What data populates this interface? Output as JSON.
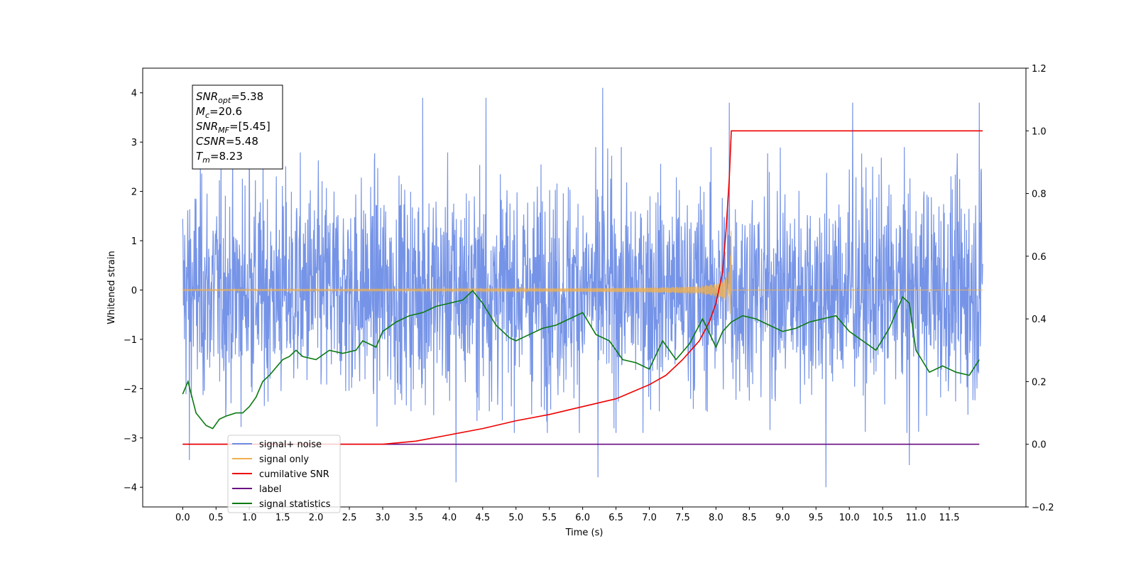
{
  "chart_data": {
    "type": "line",
    "xlabel": "Time (s)",
    "ylabel": "Whitened strain",
    "xlim": [
      -0.6,
      12.65
    ],
    "ylim": [
      -4.4,
      4.5
    ],
    "y2lim": [
      -0.2,
      1.2
    ],
    "x_ticks": [
      0.0,
      0.5,
      1.0,
      1.5,
      2.0,
      2.5,
      3.0,
      3.5,
      4.0,
      4.5,
      5.0,
      5.5,
      6.0,
      6.5,
      7.0,
      7.5,
      8.0,
      8.5,
      9.0,
      9.5,
      10.0,
      10.5,
      11.0,
      11.5
    ],
    "x_tick_labels": [
      "0.0",
      "0.5",
      "1.0",
      "1.5",
      "2.0",
      "2.5",
      "3.0",
      "3.5",
      "4.0",
      "4.5",
      "5.0",
      "5.5",
      "6.0",
      "6.5",
      "7.0",
      "7.5",
      "8.0",
      "8.5",
      "9.0",
      "9.5",
      "10.0",
      "10.5",
      "11.0",
      "11.5"
    ],
    "y_ticks": [
      -4,
      -3,
      -2,
      -1,
      0,
      1,
      2,
      3,
      4
    ],
    "y_tick_labels": [
      "−4",
      "−3",
      "−2",
      "−1",
      "0",
      "1",
      "2",
      "3",
      "4"
    ],
    "y2_ticks": [
      -0.2,
      0.0,
      0.2,
      0.4,
      0.6,
      0.8,
      1.0,
      1.2
    ],
    "y2_tick_labels": [
      "−0.2",
      "0.0",
      "0.2",
      "0.4",
      "0.6",
      "0.8",
      "1.0",
      "1.2"
    ],
    "grid": false,
    "legend_position": "lower-left",
    "merger_time": 8.23,
    "series": [
      {
        "name": "signal+ noise",
        "axis": "left",
        "color": "#6f8ee6",
        "kind": "noise",
        "x_range": [
          0.0,
          12.0
        ],
        "typical_range": [
          -2.5,
          2.5
        ],
        "peaks": [
          [
            1.0,
            3.5
          ],
          [
            3.6,
            3.9
          ],
          [
            4.55,
            3.9
          ],
          [
            6.3,
            4.1
          ],
          [
            8.2,
            3.8
          ],
          [
            10.05,
            3.8
          ],
          [
            11.95,
            3.8
          ]
        ],
        "troughs": [
          [
            0.1,
            -3.45
          ],
          [
            4.1,
            -3.9
          ],
          [
            6.23,
            -3.8
          ],
          [
            9.65,
            -4.0
          ],
          [
            10.9,
            -3.55
          ]
        ]
      },
      {
        "name": "signal only",
        "axis": "left",
        "color": "#f0b050",
        "kind": "chirp",
        "x_range": [
          0.0,
          12.0
        ],
        "peak_amplitude": 1.2,
        "end_time": 8.23
      },
      {
        "name": "cumilative SNR",
        "axis": "right",
        "color": "#ee0000",
        "x": [
          0.0,
          3.0,
          3.5,
          4.0,
          4.5,
          5.0,
          5.5,
          6.0,
          6.5,
          7.0,
          7.25,
          7.5,
          7.75,
          7.9,
          8.0,
          8.1,
          8.15,
          8.2,
          8.23,
          8.3,
          9.0,
          10.0,
          11.0,
          12.0
        ],
        "values": [
          0.0,
          0.0,
          0.01,
          0.03,
          0.05,
          0.075,
          0.095,
          0.12,
          0.145,
          0.19,
          0.22,
          0.27,
          0.33,
          0.39,
          0.45,
          0.55,
          0.68,
          0.85,
          1.0,
          1.0,
          1.0,
          1.0,
          1.0,
          1.0
        ]
      },
      {
        "name": "label",
        "axis": "right",
        "color": "#6a0d83",
        "x": [
          0.0,
          11.95
        ],
        "values": [
          0.0,
          0.0
        ]
      },
      {
        "name": "signal statistics",
        "axis": "right",
        "color": "#0c7a12",
        "x": [
          0.0,
          0.08,
          0.2,
          0.35,
          0.45,
          0.55,
          0.65,
          0.8,
          0.9,
          1.0,
          1.1,
          1.2,
          1.3,
          1.5,
          1.6,
          1.7,
          1.8,
          2.0,
          2.2,
          2.4,
          2.6,
          2.7,
          2.9,
          3.0,
          3.2,
          3.4,
          3.6,
          3.8,
          4.0,
          4.2,
          4.35,
          4.5,
          4.7,
          4.9,
          5.0,
          5.2,
          5.4,
          5.6,
          5.8,
          6.0,
          6.2,
          6.4,
          6.6,
          6.8,
          7.0,
          7.2,
          7.4,
          7.6,
          7.8,
          8.0,
          8.1,
          8.23,
          8.4,
          8.6,
          8.8,
          9.0,
          9.2,
          9.4,
          9.6,
          9.8,
          10.0,
          10.2,
          10.4,
          10.6,
          10.8,
          10.9,
          11.0,
          11.2,
          11.4,
          11.6,
          11.8,
          11.95
        ],
        "values": [
          0.16,
          0.2,
          0.1,
          0.06,
          0.05,
          0.08,
          0.09,
          0.1,
          0.1,
          0.12,
          0.15,
          0.2,
          0.22,
          0.27,
          0.28,
          0.3,
          0.28,
          0.27,
          0.3,
          0.29,
          0.3,
          0.33,
          0.31,
          0.36,
          0.39,
          0.41,
          0.42,
          0.44,
          0.45,
          0.46,
          0.49,
          0.45,
          0.38,
          0.34,
          0.33,
          0.35,
          0.37,
          0.38,
          0.4,
          0.42,
          0.35,
          0.33,
          0.27,
          0.26,
          0.24,
          0.33,
          0.27,
          0.32,
          0.4,
          0.31,
          0.36,
          0.39,
          0.41,
          0.4,
          0.38,
          0.36,
          0.37,
          0.39,
          0.4,
          0.41,
          0.36,
          0.33,
          0.3,
          0.37,
          0.47,
          0.45,
          0.3,
          0.23,
          0.25,
          0.23,
          0.22,
          0.27
        ]
      }
    ],
    "legend_items": [
      {
        "label": "signal+ noise",
        "color": "#6f8ee6"
      },
      {
        "label": "signal only",
        "color": "#f0b050"
      },
      {
        "label": "cumilative SNR",
        "color": "#ee0000"
      },
      {
        "label": "label",
        "color": "#6a0d83"
      },
      {
        "label": "signal statistics",
        "color": "#0c7a12"
      }
    ],
    "annotations": [
      {
        "base": "SNR",
        "sub": "opt",
        "value": "=5.38"
      },
      {
        "base": "M",
        "sub": "c",
        "value": "=20.6"
      },
      {
        "base": "SNR",
        "sub": "MF",
        "value": "=[5.45]"
      },
      {
        "base": "CSNR",
        "sub": "",
        "value": "=5.48"
      },
      {
        "base": "T",
        "sub": "m",
        "value": "=8.23"
      }
    ]
  }
}
